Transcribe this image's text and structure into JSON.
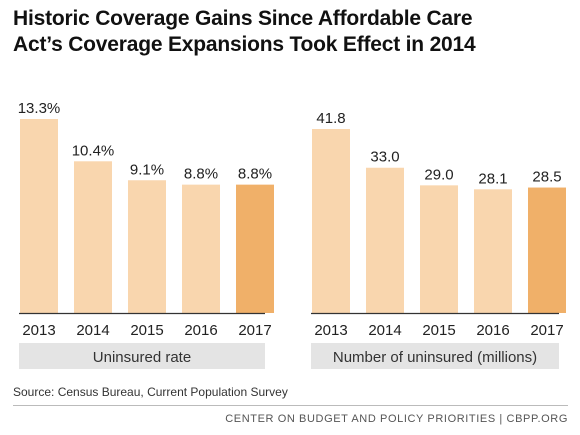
{
  "title": {
    "line1": "Historic Coverage Gains Since Affordable Care",
    "line2": "Act’s Coverage Expansions Took Effect in 2014"
  },
  "colors": {
    "bar": "#f9d6ae",
    "highlight": "#f0b069",
    "caption_bg": "#e4e4e4",
    "baseline": "#333333"
  },
  "chart_data": [
    {
      "type": "bar",
      "categories": [
        "2013",
        "2014",
        "2015",
        "2016",
        "2017"
      ],
      "values": [
        13.3,
        10.4,
        9.1,
        8.8,
        8.8
      ],
      "labels": [
        "13.3%",
        "10.4%",
        "9.1%",
        "8.8%",
        "8.8%"
      ],
      "highlight_index": 4,
      "xlabel": "Uninsured rate",
      "ylim": [
        0,
        13.3
      ]
    },
    {
      "type": "bar",
      "categories": [
        "2013",
        "2014",
        "2015",
        "2016",
        "2017"
      ],
      "values": [
        41.8,
        33.0,
        29.0,
        28.1,
        28.5
      ],
      "labels": [
        "41.8",
        "33.0",
        "29.0",
        "28.1",
        "28.5"
      ],
      "highlight_index": 4,
      "xlabel": "Number of uninsured (millions)",
      "ylim": [
        0,
        41.8
      ]
    }
  ],
  "source": "Source: Census Bureau, Current Population Survey",
  "footer": "CENTER ON BUDGET AND POLICY PRIORITIES | CBPP.ORG"
}
